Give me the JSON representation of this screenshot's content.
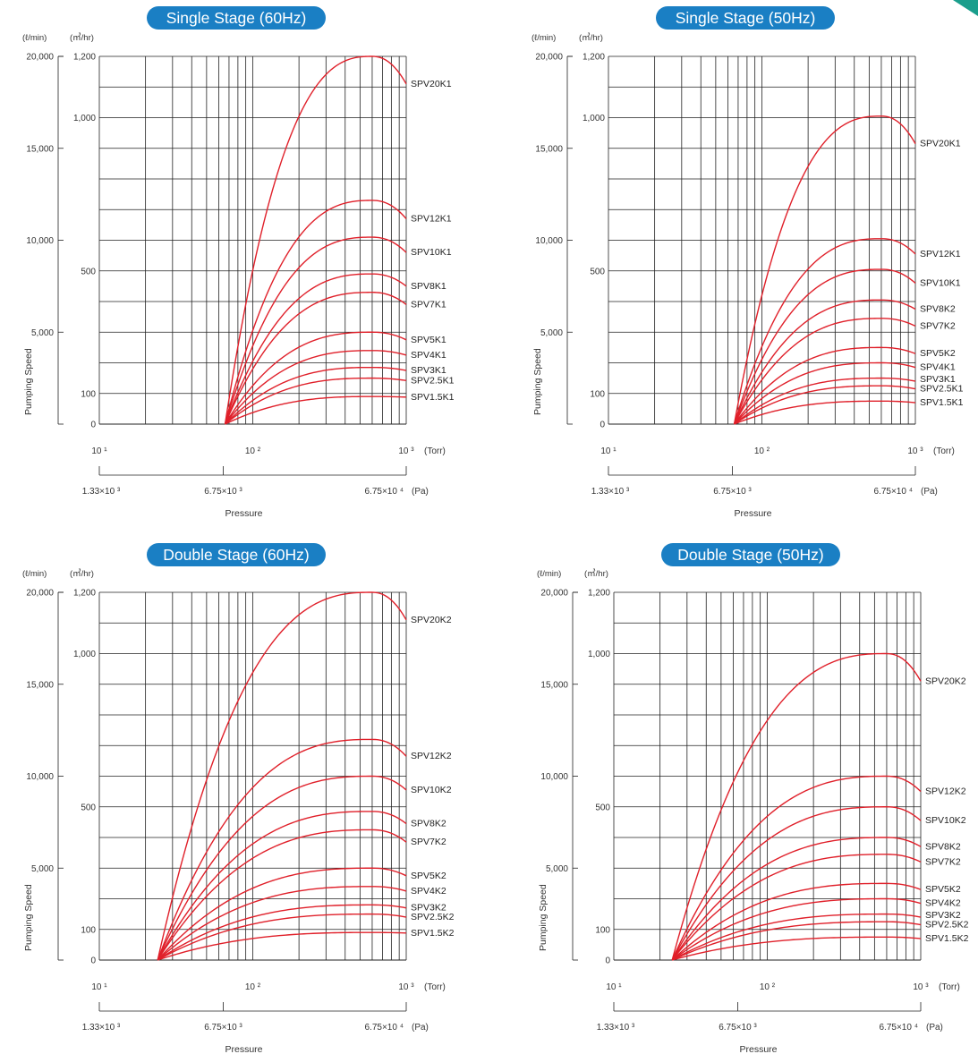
{
  "colors": {
    "title_bg": "#1a7fc4",
    "curve": "#e0202a",
    "grid": "#222222",
    "accent": "#1a9e8c"
  },
  "chart_data": [
    {
      "type": "line",
      "title": "Single Stage (60Hz)",
      "x_unit": "(Torr)",
      "x_ticks": [
        "10 ¹",
        "10 ²",
        "10 ³"
      ],
      "pa_unit": "(Pa)",
      "pa_ticks": [
        "1.33×10 ³",
        "6.75×10 ³",
        "6.75×10 ⁴"
      ],
      "xlabel": "Pressure",
      "ylabel": "Pumping Speed",
      "y_left_unit": "(ℓ/min)",
      "y_right_unit": "(㎥/hr)",
      "y_left_ticks": [
        "20,000",
        "15,000",
        "10,000",
        "5,000"
      ],
      "y_right_ticks": [
        "1,200",
        "1,000",
        "500",
        "100",
        "0"
      ],
      "x_scale": "log",
      "xlim": [
        10,
        1000
      ],
      "ylim": [
        0,
        1200
      ],
      "grid": true,
      "series": [
        {
          "name": "SPV20K1",
          "peak": 1200,
          "end": 1110
        },
        {
          "name": "SPV12K1",
          "peak": 730,
          "end": 670
        },
        {
          "name": "SPV10K1",
          "peak": 610,
          "end": 560
        },
        {
          "name": "SPV8K1",
          "peak": 490,
          "end": 450
        },
        {
          "name": "SPV7K1",
          "peak": 430,
          "end": 390
        },
        {
          "name": "SPV5K1",
          "peak": 300,
          "end": 275
        },
        {
          "name": "SPV4K1",
          "peak": 240,
          "end": 225
        },
        {
          "name": "SPV3K1",
          "peak": 185,
          "end": 175
        },
        {
          "name": "SPV2.5K1",
          "peak": 150,
          "end": 142
        },
        {
          "name": "SPV1.5K1",
          "peak": 90,
          "end": 88
        }
      ]
    },
    {
      "type": "line",
      "title": "Single Stage (50Hz)",
      "x_unit": "(Torr)",
      "x_ticks": [
        "10 ¹",
        "10 ²",
        "10 ³"
      ],
      "pa_unit": "(Pa)",
      "pa_ticks": [
        "1.33×10 ³",
        "6.75×10 ³",
        "6.75×10 ⁴"
      ],
      "xlabel": "Pressure",
      "ylabel": "Pumping Speed",
      "y_left_unit": "(ℓ/min)",
      "y_right_unit": "(㎥/hr)",
      "y_left_ticks": [
        "20,000",
        "15,000",
        "10,000",
        "5,000"
      ],
      "y_right_ticks": [
        "1,200",
        "1,000",
        "500",
        "100",
        "0"
      ],
      "x_scale": "log",
      "xlim": [
        10,
        1000
      ],
      "ylim": [
        0,
        1200
      ],
      "grid": true,
      "series": [
        {
          "name": "SPV20K1",
          "peak": 1005,
          "end": 915
        },
        {
          "name": "SPV12K1",
          "peak": 605,
          "end": 555
        },
        {
          "name": "SPV10K1",
          "peak": 505,
          "end": 460
        },
        {
          "name": "SPV8K2",
          "peak": 405,
          "end": 375
        },
        {
          "name": "SPV7K2",
          "peak": 345,
          "end": 320
        },
        {
          "name": "SPV5K2",
          "peak": 250,
          "end": 230
        },
        {
          "name": "SPV4K1",
          "peak": 200,
          "end": 185
        },
        {
          "name": "SPV3K1",
          "peak": 150,
          "end": 140
        },
        {
          "name": "SPV2.5K1",
          "peak": 125,
          "end": 115
        },
        {
          "name": "SPV1.5K1",
          "peak": 75,
          "end": 70
        }
      ]
    },
    {
      "type": "line",
      "title": "Double Stage (60Hz)",
      "x_unit": "(Torr)",
      "x_ticks": [
        "10 ¹",
        "10 ²",
        "10 ³"
      ],
      "pa_unit": "(Pa)",
      "pa_ticks": [
        "1.33×10 ³",
        "6.75×10 ³",
        "6.75×10 ⁴"
      ],
      "xlabel": "Pressure",
      "ylabel": "Pumping Speed",
      "y_left_unit": "(ℓ/min)",
      "y_right_unit": "(㎥/hr)",
      "y_left_ticks": [
        "20,000",
        "15,000",
        "10,000",
        "5,000"
      ],
      "y_right_ticks": [
        "1,200",
        "1,000",
        "500",
        "100",
        "0"
      ],
      "x_scale": "log",
      "xlim": [
        10,
        1000
      ],
      "ylim": [
        0,
        1200
      ],
      "grid": true,
      "series": [
        {
          "name": "SPV20K2",
          "peak": 1200,
          "end": 1110
        },
        {
          "name": "SPV12K2",
          "peak": 720,
          "end": 665
        },
        {
          "name": "SPV10K2",
          "peak": 600,
          "end": 555
        },
        {
          "name": "SPV8K2",
          "peak": 485,
          "end": 445
        },
        {
          "name": "SPV7K2",
          "peak": 425,
          "end": 385
        },
        {
          "name": "SPV5K2",
          "peak": 300,
          "end": 275
        },
        {
          "name": "SPV4K2",
          "peak": 240,
          "end": 225
        },
        {
          "name": "SPV3K2",
          "peak": 180,
          "end": 170
        },
        {
          "name": "SPV2.5K2",
          "peak": 150,
          "end": 140
        },
        {
          "name": "SPV1.5K2",
          "peak": 90,
          "end": 88
        }
      ]
    },
    {
      "type": "line",
      "title": "Double Stage (50Hz)",
      "x_unit": "(Torr)",
      "x_ticks": [
        "10 ¹",
        "10 ²",
        "10 ³"
      ],
      "pa_unit": "(Pa)",
      "pa_ticks": [
        "1.33×10 ³",
        "6.75×10 ³",
        "6.75×10 ⁴"
      ],
      "xlabel": "Pressure",
      "ylabel": "Pumping Speed",
      "y_left_unit": "(ℓ/min)",
      "y_right_unit": "(㎥/hr)",
      "y_left_ticks": [
        "20,000",
        "15,000",
        "10,000",
        "5,000"
      ],
      "y_right_ticks": [
        "1,200",
        "1,000",
        "500",
        "100",
        "0"
      ],
      "x_scale": "log",
      "xlim": [
        10,
        1000
      ],
      "ylim": [
        0,
        1200
      ],
      "grid": true,
      "series": [
        {
          "name": "SPV20K2",
          "peak": 1000,
          "end": 910
        },
        {
          "name": "SPV12K2",
          "peak": 600,
          "end": 550
        },
        {
          "name": "SPV10K2",
          "peak": 500,
          "end": 455
        },
        {
          "name": "SPV8K2",
          "peak": 400,
          "end": 370
        },
        {
          "name": "SPV7K2",
          "peak": 345,
          "end": 320
        },
        {
          "name": "SPV5K2",
          "peak": 250,
          "end": 230
        },
        {
          "name": "SPV4K2",
          "peak": 200,
          "end": 185
        },
        {
          "name": "SPV3K2",
          "peak": 150,
          "end": 140
        },
        {
          "name": "SPV2.5K2",
          "peak": 125,
          "end": 115
        },
        {
          "name": "SPV1.5K2",
          "peak": 75,
          "end": 70
        }
      ]
    }
  ]
}
